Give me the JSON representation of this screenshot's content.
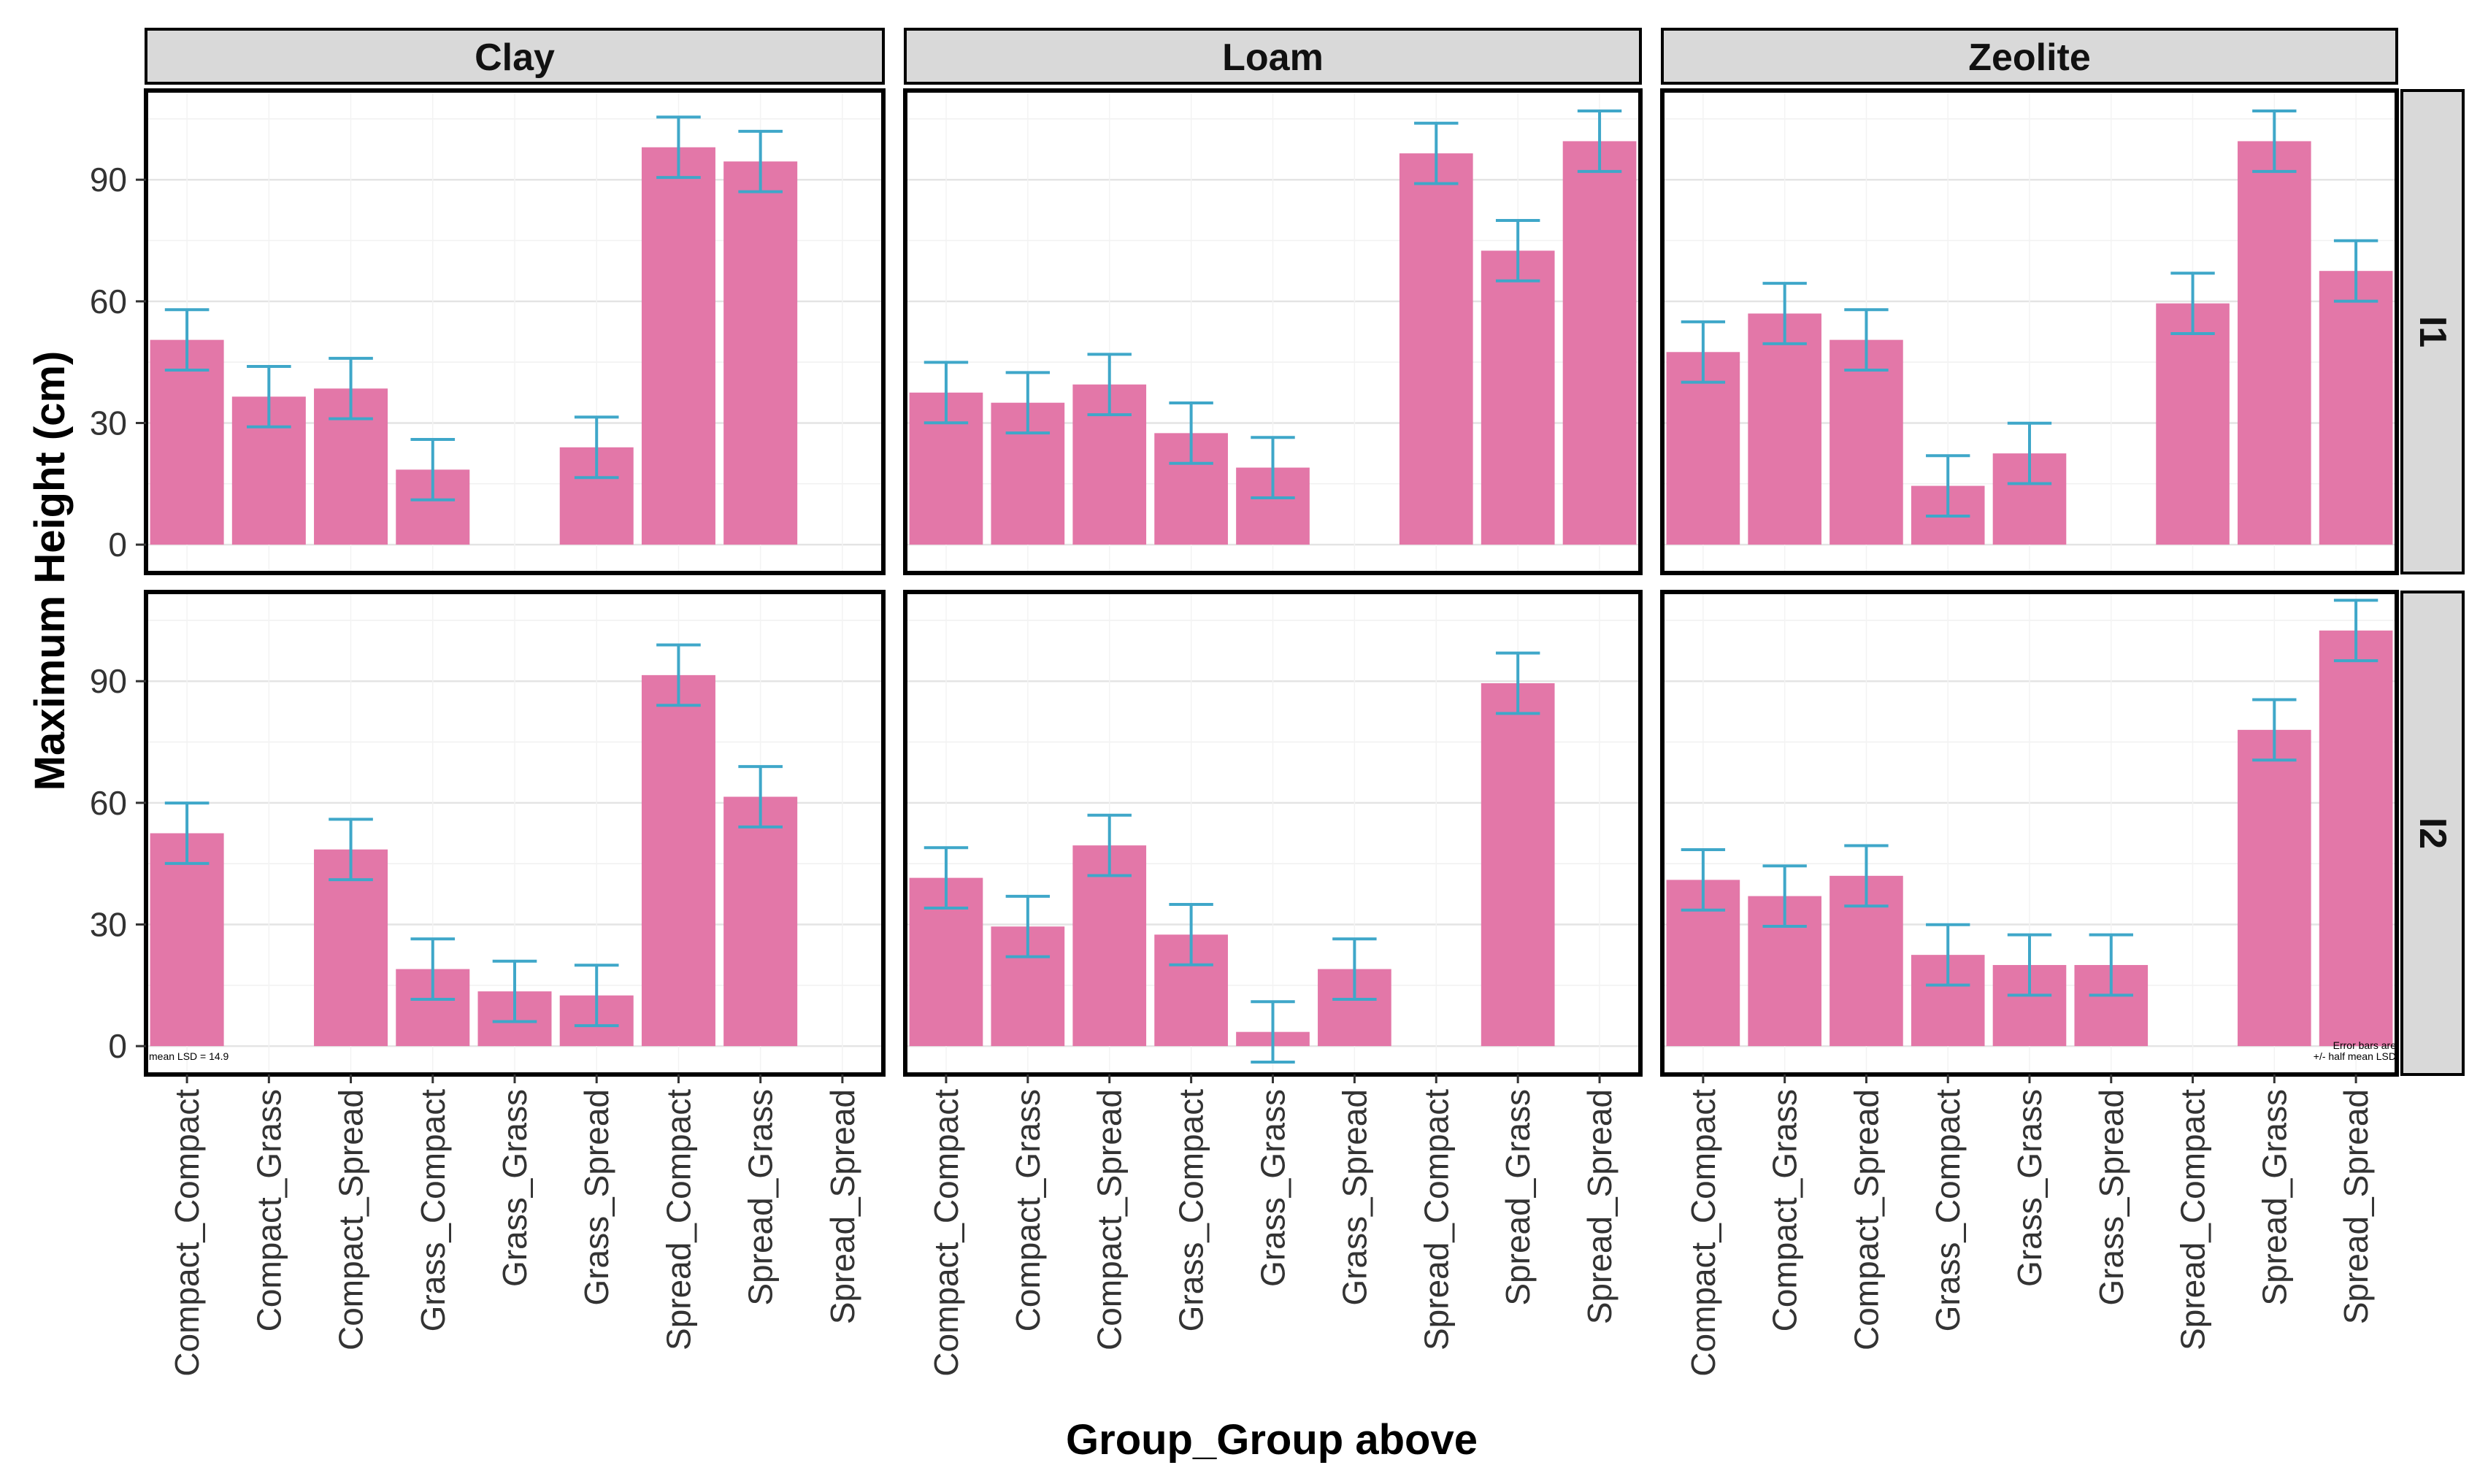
{
  "chart_data": {
    "type": "bar",
    "xlabel": "Group_Group above",
    "ylabel": "Maximum Height (cm)",
    "ylim": [
      -7,
      112
    ],
    "yticks": [
      0,
      30,
      60,
      90
    ],
    "grid": true,
    "columns": [
      "Clay",
      "Loam",
      "Zeolite"
    ],
    "rows": [
      "I1",
      "I2"
    ],
    "categories": [
      "Compact_Compact",
      "Compact_Grass",
      "Compact_Spread",
      "Grass_Compact",
      "Grass_Grass",
      "Grass_Spread",
      "Spread_Compact",
      "Spread_Grass",
      "Spread_Spread"
    ],
    "bar_color": "#E377A8",
    "error_color": "#3FA7C9",
    "error_halfwidth": 7.45,
    "annotations": {
      "lsd": "mean LSD = 14.9",
      "error_note_1": "Error bars are",
      "error_note_2": "+/- half mean LSD"
    },
    "panels": [
      {
        "column": "Clay",
        "row": "I1",
        "values": [
          50.5,
          36.5,
          38.5,
          18.5,
          null,
          24,
          98,
          94.5,
          null
        ]
      },
      {
        "column": "Loam",
        "row": "I1",
        "values": [
          37.5,
          35,
          39.5,
          27.5,
          19,
          null,
          96.5,
          72.5,
          99.5
        ]
      },
      {
        "column": "Zeolite",
        "row": "I1",
        "values": [
          47.5,
          57,
          50.5,
          14.5,
          22.5,
          null,
          59.5,
          99.5,
          67.5
        ]
      },
      {
        "column": "Clay",
        "row": "I2",
        "values": [
          52.5,
          null,
          48.5,
          19,
          13.5,
          12.5,
          91.5,
          61.5,
          null
        ]
      },
      {
        "column": "Loam",
        "row": "I2",
        "values": [
          41.5,
          29.5,
          49.5,
          27.5,
          3.5,
          19,
          null,
          89.5,
          null
        ]
      },
      {
        "column": "Zeolite",
        "row": "I2",
        "values": [
          41,
          37,
          42,
          22.5,
          20,
          20,
          null,
          78,
          102.5
        ]
      }
    ]
  }
}
